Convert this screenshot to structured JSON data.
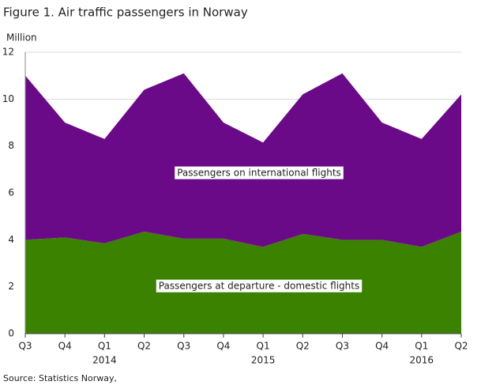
{
  "chart_data": {
    "type": "stacked_area",
    "title": "Figure 1. Air traffic passengers in Norway",
    "y_axis_label": "Million",
    "source": "Source: Statistics Norway,",
    "categories": [
      "Q3",
      "Q4",
      "Q1",
      "Q2",
      "Q3",
      "Q4",
      "Q1",
      "Q2",
      "Q3",
      "Q4",
      "Q1",
      "Q2"
    ],
    "year_labels": [
      null,
      null,
      "2014",
      null,
      null,
      null,
      "2015",
      null,
      null,
      null,
      "2016",
      null
    ],
    "series": [
      {
        "name": "Passengers  at departure  - domestic  flights",
        "color": "#3a8200",
        "values": [
          4.0,
          4.1,
          3.85,
          4.35,
          4.05,
          4.05,
          3.7,
          4.25,
          4.0,
          4.0,
          3.7,
          4.35
        ]
      },
      {
        "name": "Passengers  on international  flights",
        "color": "#6b0a88",
        "values": [
          7.0,
          4.9,
          4.45,
          6.05,
          7.05,
          4.95,
          4.45,
          5.95,
          7.1,
          5.0,
          4.6,
          5.85
        ]
      }
    ],
    "ylim": [
      0,
      12
    ],
    "yticks": [
      0,
      2,
      4,
      6,
      8,
      10,
      12
    ],
    "grid": true
  }
}
